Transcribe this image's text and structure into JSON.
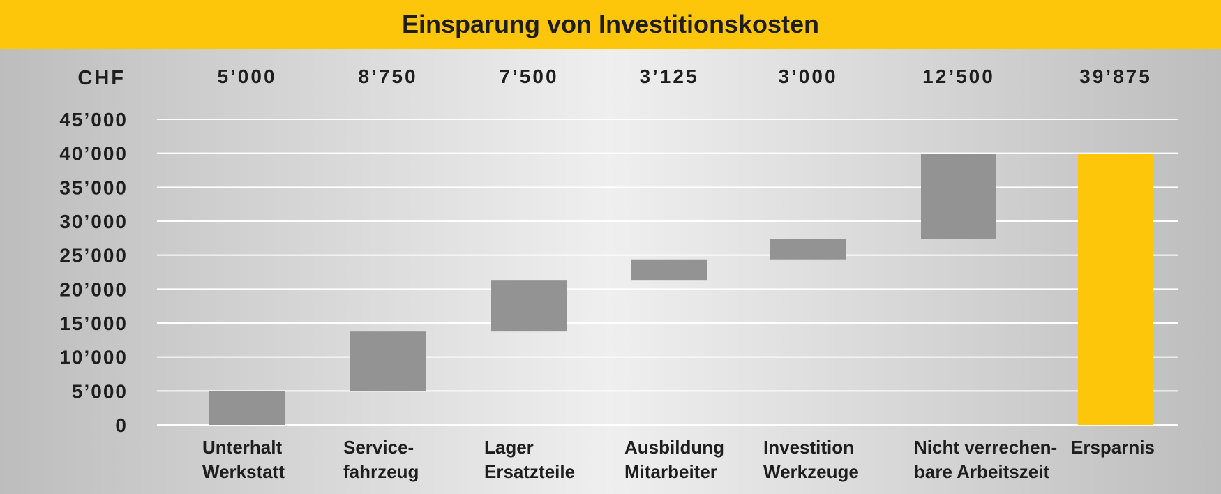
{
  "chart_data": {
    "type": "bar",
    "subtype": "waterfall",
    "title": "Einsparung von Investitionskosten",
    "unit_label": "CHF",
    "categories": [
      [
        "Unterhalt",
        "Werkstatt"
      ],
      [
        "Service-",
        "fahrzeug"
      ],
      [
        "Lager",
        "Ersatzteile"
      ],
      [
        "Ausbildung",
        "Mitarbeiter"
      ],
      [
        "Investition",
        "Werkzeuge"
      ],
      [
        "Nicht verrechen-",
        "bare Arbeitszeit"
      ],
      [
        "Ersparnis"
      ]
    ],
    "values": [
      5000,
      8750,
      7500,
      3125,
      3000,
      12500,
      39875
    ],
    "value_labels": [
      "5’000",
      "8’750",
      "7’500",
      "3’125",
      "3’000",
      "12’500",
      "39’875"
    ],
    "total_index": 6,
    "ylim": [
      0,
      45000
    ],
    "yticks": [
      0,
      5000,
      10000,
      15000,
      20000,
      25000,
      30000,
      35000,
      40000,
      45000
    ],
    "ytick_labels": [
      "0",
      "5’000",
      "10’000",
      "15’000",
      "20’000",
      "25’000",
      "30’000",
      "35’000",
      "40’000",
      "45’000"
    ],
    "grid": true,
    "colors": {
      "header": "#FDC60B",
      "step": "#939393",
      "total": "#FDC60B",
      "grid": "#FFFFFF",
      "text": "#1E1E1E",
      "background_edge": "#BDBDBD",
      "background_center": "#EFEFEF"
    }
  }
}
